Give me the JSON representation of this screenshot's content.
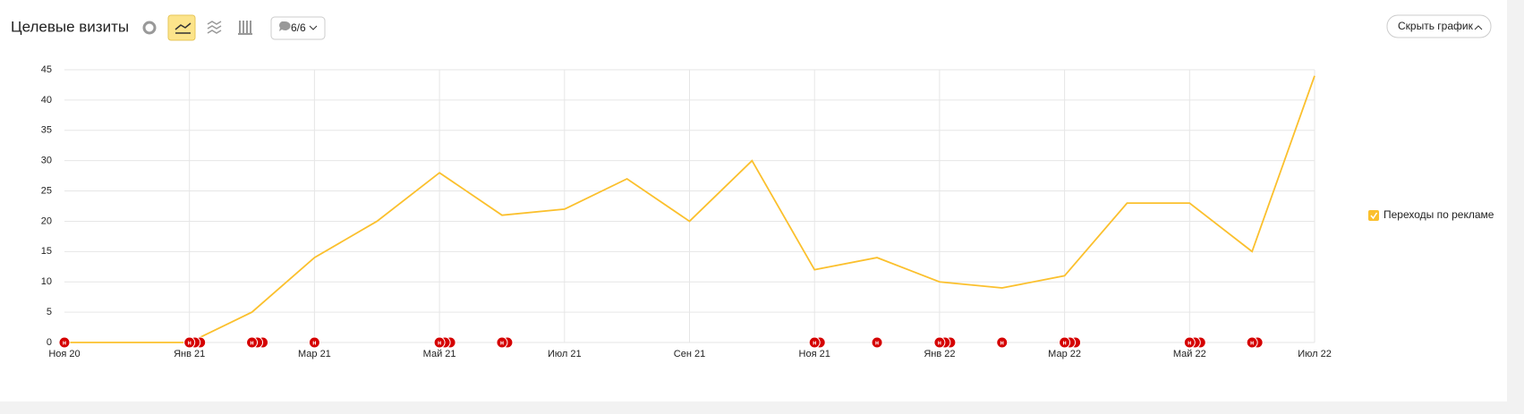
{
  "header": {
    "title": "Целевые визиты",
    "annotations_button": "6/6",
    "hide_button": "Скрыть график"
  },
  "chart_data": {
    "type": "line",
    "categories": [
      "Ноя 20",
      null,
      "Янв 21",
      null,
      "Мар 21",
      null,
      "Май 21",
      null,
      "Июл 21",
      null,
      "Сен 21",
      null,
      "Ноя 21",
      null,
      "Янв 22",
      null,
      "Мар 22",
      null,
      "Май 22",
      null,
      "Июл 22"
    ],
    "series": [
      {
        "name": "Переходы по рекламе",
        "color": "#fbc02d",
        "values": [
          0,
          0,
          0,
          5,
          14,
          20,
          28,
          21,
          22,
          27,
          20,
          30,
          12,
          14,
          10,
          9,
          11,
          23,
          23,
          15,
          44
        ]
      }
    ],
    "ylim": [
      0,
      45
    ],
    "yticks": [
      0,
      5,
      10,
      15,
      20,
      25,
      30,
      35,
      40,
      45
    ],
    "grid": true,
    "legend": "right",
    "annotation_label": "н",
    "annotation_counts": [
      1,
      0,
      3,
      3,
      1,
      0,
      3,
      2,
      0,
      0,
      0,
      0,
      2,
      1,
      3,
      1,
      3,
      0,
      3,
      2,
      0
    ]
  }
}
